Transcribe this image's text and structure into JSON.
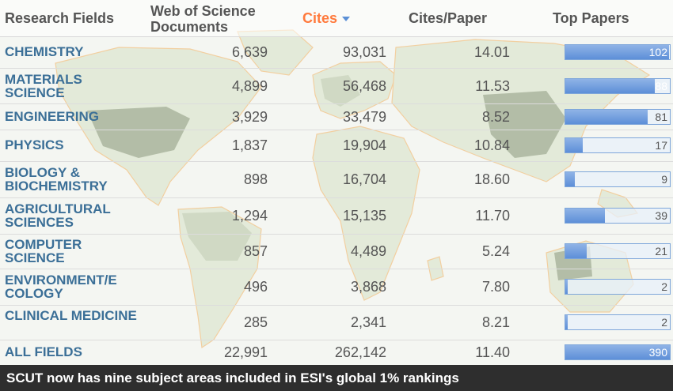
{
  "table": {
    "headers": {
      "field": "Research Fields",
      "docs": "Web of Science Documents",
      "cites": "Cites",
      "cites_per_paper": "Cites/Paper",
      "top_papers": "Top Papers"
    },
    "rows": [
      {
        "field": "CHEMISTRY",
        "docs": "6,639",
        "cites": "93,031",
        "cpp": "14.01",
        "top": "102",
        "top_value": 102
      },
      {
        "field": "MATERIALS SCIENCE",
        "docs": "4,899",
        "cites": "56,468",
        "cpp": "11.53",
        "top": "88",
        "top_value": 88
      },
      {
        "field": "ENGINEERING",
        "docs": "3,929",
        "cites": "33,479",
        "cpp": "8.52",
        "top": "81",
        "top_value": 81
      },
      {
        "field": "PHYSICS",
        "docs": "1,837",
        "cites": "19,904",
        "cpp": "10.84",
        "top": "17",
        "top_value": 17
      },
      {
        "field": "BIOLOGY & BIOCHEMISTRY",
        "docs": "898",
        "cites": "16,704",
        "cpp": "18.60",
        "top": "9",
        "top_value": 9
      },
      {
        "field": "AGRICULTURAL SCIENCES",
        "docs": "1,294",
        "cites": "15,135",
        "cpp": "11.70",
        "top": "39",
        "top_value": 39
      },
      {
        "field": "COMPUTER SCIENCE",
        "docs": "857",
        "cites": "4,489",
        "cpp": "5.24",
        "top": "21",
        "top_value": 21
      },
      {
        "field": "ENVIRONMENT/E COLOGY",
        "docs": "496",
        "cites": "3,868",
        "cpp": "7.80",
        "top": "2",
        "top_value": 2
      },
      {
        "field": "CLINICAL MEDICINE",
        "docs": "285",
        "cites": "2,341",
        "cpp": "8.21",
        "top": "2",
        "top_value": 2
      },
      {
        "field": "ALL FIELDS",
        "docs": "22,991",
        "cites": "262,142",
        "cpp": "11.40",
        "top": "390",
        "top_value": 390
      }
    ]
  },
  "caption": "SCUT now has nine subject areas included in ESI's global 1% rankings",
  "colors": {
    "header_text": "#555555",
    "active_sort": "#ff7a3d",
    "field_text": "#3b6f97",
    "bar": "#5d8fd8",
    "caption_bg": "#2e2e2e"
  },
  "icons": {
    "sort": "sort-descending-icon",
    "background": "world-map-icon"
  }
}
